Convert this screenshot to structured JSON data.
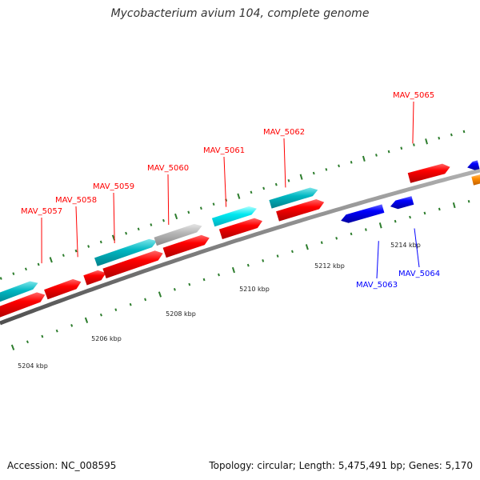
{
  "title": "Mycobacterium avium 104, complete genome",
  "footer": {
    "accession": "Accession: NC_008595",
    "summary": "Topology: circular; Length: 5,475,491 bp; Genes: 5,170"
  },
  "colors": {
    "forward_cds": "#ff0000",
    "reverse_cds": "#0000ff",
    "forward_feature": "#00b7c2",
    "forward_feature_bright": "#00e8f0",
    "gray_feature": "#b8b8b8",
    "orange_feature": "#ff8c00",
    "backbone": "#808080",
    "tick": "#2d7d2d"
  },
  "scale": {
    "unit": "kbp",
    "ticks": [
      {
        "label": "5204 kbp",
        "kbp": 5204
      },
      {
        "label": "5206 kbp",
        "kbp": 5206
      },
      {
        "label": "5208 kbp",
        "kbp": 5208
      },
      {
        "label": "5210 kbp",
        "kbp": 5210
      },
      {
        "label": "5212 kbp",
        "kbp": 5212
      },
      {
        "label": "5214 kbp",
        "kbp": 5214
      }
    ]
  },
  "genes": [
    {
      "label": "MAV_5057",
      "strand": "forward"
    },
    {
      "label": "MAV_5058",
      "strand": "forward"
    },
    {
      "label": "MAV_5059",
      "strand": "forward"
    },
    {
      "label": "MAV_5060",
      "strand": "forward"
    },
    {
      "label": "MAV_5061",
      "strand": "forward"
    },
    {
      "label": "MAV_5062",
      "strand": "forward"
    },
    {
      "label": "MAV_5065",
      "strand": "forward"
    },
    {
      "label": "MAV_5063",
      "strand": "reverse"
    },
    {
      "label": "MAV_5064",
      "strand": "reverse"
    }
  ]
}
